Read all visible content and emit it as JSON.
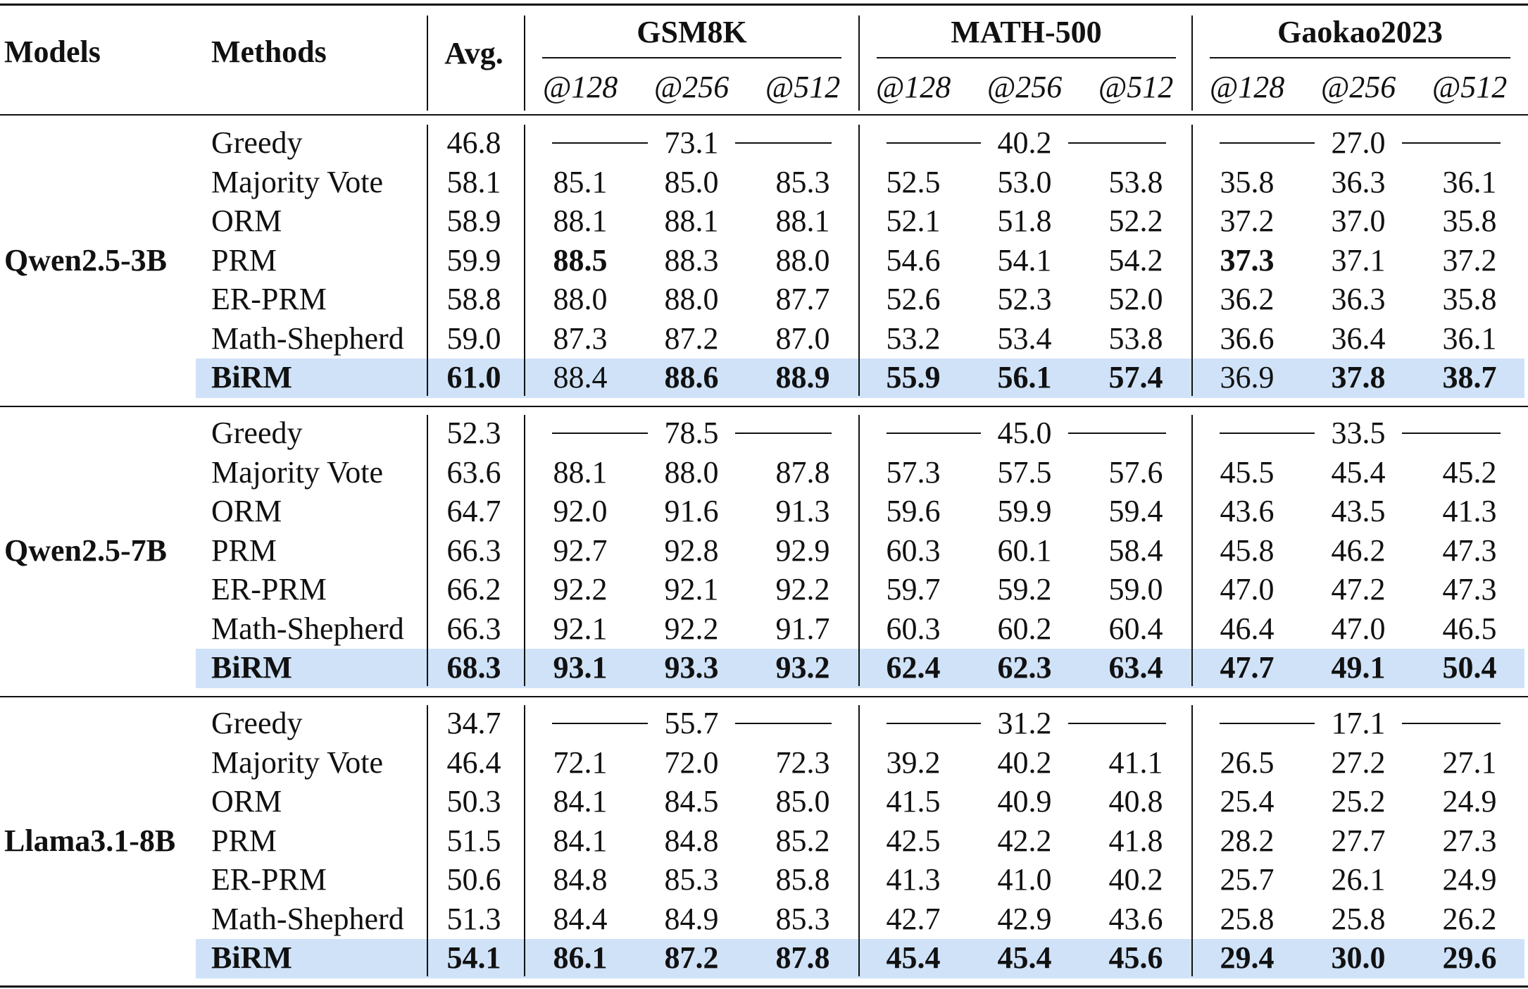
{
  "header": {
    "models": "Models",
    "methods": "Methods",
    "avg": "Avg.",
    "datasets": [
      "GSM8K",
      "MATH-500",
      "Gaokao2023"
    ],
    "budgets": [
      "@128",
      "@256",
      "@512"
    ]
  },
  "highlight_color": "#cfe2f8",
  "groups": [
    {
      "model": "Qwen2.5-3B",
      "rows": [
        {
          "method": "Greedy",
          "avg": "46.8",
          "greedy": [
            "73.1",
            "40.2",
            "27.0"
          ]
        },
        {
          "method": "Majority Vote",
          "avg": "58.1",
          "cells": [
            "85.1",
            "85.0",
            "85.3",
            "52.5",
            "53.0",
            "53.8",
            "35.8",
            "36.3",
            "36.1"
          ]
        },
        {
          "method": "ORM",
          "avg": "58.9",
          "cells": [
            "88.1",
            "88.1",
            "88.1",
            "52.1",
            "51.8",
            "52.2",
            "37.2",
            "37.0",
            "35.8"
          ]
        },
        {
          "method": "PRM",
          "avg": "59.9",
          "cells": [
            "88.5",
            "88.3",
            "88.0",
            "54.6",
            "54.1",
            "54.2",
            "37.3",
            "37.1",
            "37.2"
          ],
          "bold_cells": [
            0,
            6
          ]
        },
        {
          "method": "ER-PRM",
          "avg": "58.8",
          "cells": [
            "88.0",
            "88.0",
            "87.7",
            "52.6",
            "52.3",
            "52.0",
            "36.2",
            "36.3",
            "35.8"
          ]
        },
        {
          "method": "Math-Shepherd",
          "avg": "59.0",
          "cells": [
            "87.3",
            "87.2",
            "87.0",
            "53.2",
            "53.4",
            "53.8",
            "36.6",
            "36.4",
            "36.1"
          ]
        },
        {
          "method": "BiRM",
          "avg": "61.0",
          "cells": [
            "88.4",
            "88.6",
            "88.9",
            "55.9",
            "56.1",
            "57.4",
            "36.9",
            "37.8",
            "38.7"
          ],
          "highlight": true,
          "bold_method": true,
          "bold_avg": true,
          "bold_cells": [
            1,
            2,
            3,
            4,
            5,
            7,
            8
          ]
        }
      ]
    },
    {
      "model": "Qwen2.5-7B",
      "rows": [
        {
          "method": "Greedy",
          "avg": "52.3",
          "greedy": [
            "78.5",
            "45.0",
            "33.5"
          ]
        },
        {
          "method": "Majority Vote",
          "avg": "63.6",
          "cells": [
            "88.1",
            "88.0",
            "87.8",
            "57.3",
            "57.5",
            "57.6",
            "45.5",
            "45.4",
            "45.2"
          ]
        },
        {
          "method": "ORM",
          "avg": "64.7",
          "cells": [
            "92.0",
            "91.6",
            "91.3",
            "59.6",
            "59.9",
            "59.4",
            "43.6",
            "43.5",
            "41.3"
          ]
        },
        {
          "method": "PRM",
          "avg": "66.3",
          "cells": [
            "92.7",
            "92.8",
            "92.9",
            "60.3",
            "60.1",
            "58.4",
            "45.8",
            "46.2",
            "47.3"
          ]
        },
        {
          "method": "ER-PRM",
          "avg": "66.2",
          "cells": [
            "92.2",
            "92.1",
            "92.2",
            "59.7",
            "59.2",
            "59.0",
            "47.0",
            "47.2",
            "47.3"
          ]
        },
        {
          "method": "Math-Shepherd",
          "avg": "66.3",
          "cells": [
            "92.1",
            "92.2",
            "91.7",
            "60.3",
            "60.2",
            "60.4",
            "46.4",
            "47.0",
            "46.5"
          ]
        },
        {
          "method": "BiRM",
          "avg": "68.3",
          "cells": [
            "93.1",
            "93.3",
            "93.2",
            "62.4",
            "62.3",
            "63.4",
            "47.7",
            "49.1",
            "50.4"
          ],
          "highlight": true,
          "bold_method": true,
          "bold_avg": true,
          "bold_cells": [
            0,
            1,
            2,
            3,
            4,
            5,
            6,
            7,
            8
          ]
        }
      ]
    },
    {
      "model": "Llama3.1-8B",
      "rows": [
        {
          "method": "Greedy",
          "avg": "34.7",
          "greedy": [
            "55.7",
            "31.2",
            "17.1"
          ]
        },
        {
          "method": "Majority Vote",
          "avg": "46.4",
          "cells": [
            "72.1",
            "72.0",
            "72.3",
            "39.2",
            "40.2",
            "41.1",
            "26.5",
            "27.2",
            "27.1"
          ]
        },
        {
          "method": "ORM",
          "avg": "50.3",
          "cells": [
            "84.1",
            "84.5",
            "85.0",
            "41.5",
            "40.9",
            "40.8",
            "25.4",
            "25.2",
            "24.9"
          ]
        },
        {
          "method": "PRM",
          "avg": "51.5",
          "cells": [
            "84.1",
            "84.8",
            "85.2",
            "42.5",
            "42.2",
            "41.8",
            "28.2",
            "27.7",
            "27.3"
          ]
        },
        {
          "method": "ER-PRM",
          "avg": "50.6",
          "cells": [
            "84.8",
            "85.3",
            "85.8",
            "41.3",
            "41.0",
            "40.2",
            "25.7",
            "26.1",
            "24.9"
          ]
        },
        {
          "method": "Math-Shepherd",
          "avg": "51.3",
          "cells": [
            "84.4",
            "84.9",
            "85.3",
            "42.7",
            "42.9",
            "43.6",
            "25.8",
            "25.8",
            "26.2"
          ]
        },
        {
          "method": "BiRM",
          "avg": "54.1",
          "cells": [
            "86.1",
            "87.2",
            "87.8",
            "45.4",
            "45.4",
            "45.6",
            "29.4",
            "30.0",
            "29.6"
          ],
          "highlight": true,
          "bold_method": true,
          "bold_avg": true,
          "bold_cells": [
            0,
            1,
            2,
            3,
            4,
            5,
            6,
            7,
            8
          ]
        }
      ]
    }
  ]
}
